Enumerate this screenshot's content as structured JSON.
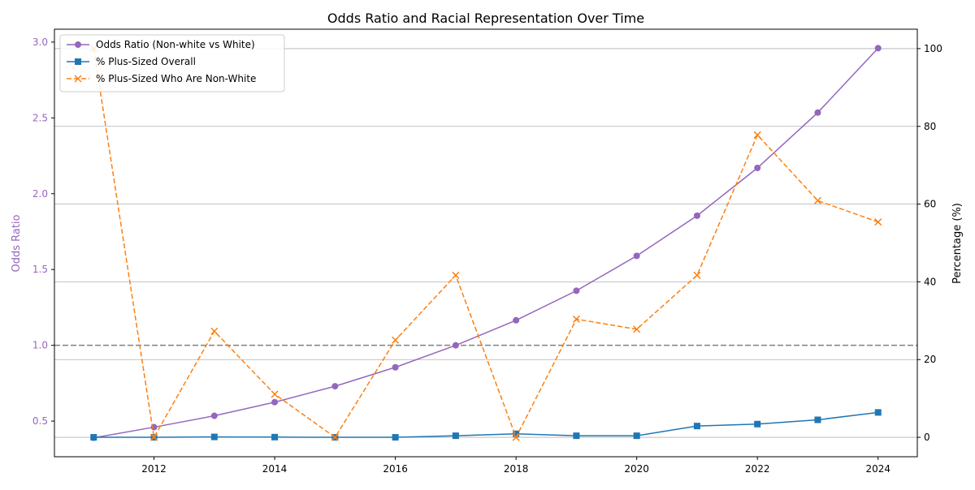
{
  "chart_data": {
    "type": "line",
    "title": "Odds Ratio and Racial Representation Over Time",
    "xlabel": "",
    "ylabel_left": "Odds Ratio",
    "ylabel_right": "Percentage (%)",
    "x": [
      2011,
      2012,
      2013,
      2014,
      2015,
      2016,
      2017,
      2018,
      2019,
      2020,
      2021,
      2022,
      2023,
      2024
    ],
    "x_ticks": [
      2012,
      2014,
      2016,
      2018,
      2020,
      2022,
      2024
    ],
    "x_tick_labels": [
      "2012",
      "2014",
      "2016",
      "2018",
      "2020",
      "2022",
      "2024"
    ],
    "xlim": [
      2010.35,
      2024.65
    ],
    "ylim_left": [
      0.265,
      3.085
    ],
    "ylim_right": [
      -5,
      105
    ],
    "left_ticks": [
      0.5,
      1.0,
      1.5,
      2.0,
      2.5,
      3.0
    ],
    "left_tick_labels": [
      "0.5",
      "1.0",
      "1.5",
      "2.0",
      "2.5",
      "3.0"
    ],
    "right_ticks": [
      0,
      20,
      40,
      60,
      80,
      100
    ],
    "right_tick_labels": [
      "0",
      "20",
      "40",
      "60",
      "80",
      "100"
    ],
    "grid": "horizontal lines at right-axis ticks",
    "reference_line": {
      "axis": "left",
      "value": 1.0,
      "style": "dashed",
      "color": "#808080"
    },
    "legend_placement": "top-left",
    "series": [
      {
        "name": "Odds Ratio (Non-white vs White)",
        "axis": "left",
        "color": "#9467bd",
        "marker": "circle",
        "linestyle": "solid",
        "values": [
          0.39,
          0.46,
          0.535,
          0.625,
          0.73,
          0.855,
          1.0,
          1.165,
          1.36,
          1.59,
          1.855,
          2.17,
          2.535,
          2.96
        ]
      },
      {
        "name": "% Plus-Sized Overall",
        "axis": "right",
        "color": "#1f77b4",
        "marker": "square",
        "linestyle": "solid",
        "values": [
          0.0,
          0.0,
          0.1,
          0.05,
          0.0,
          0.0,
          0.4,
          0.9,
          0.4,
          0.4,
          2.9,
          3.4,
          4.5,
          6.4
        ]
      },
      {
        "name": "% Plus-Sized Who Are Non-White",
        "axis": "right",
        "color": "#ff7f0e",
        "marker": "x",
        "linestyle": "dashed",
        "values": [
          100.0,
          0.0,
          27.3,
          11.1,
          0.0,
          25.0,
          41.7,
          0.0,
          30.4,
          27.8,
          41.7,
          77.8,
          60.9,
          55.4
        ]
      }
    ]
  }
}
